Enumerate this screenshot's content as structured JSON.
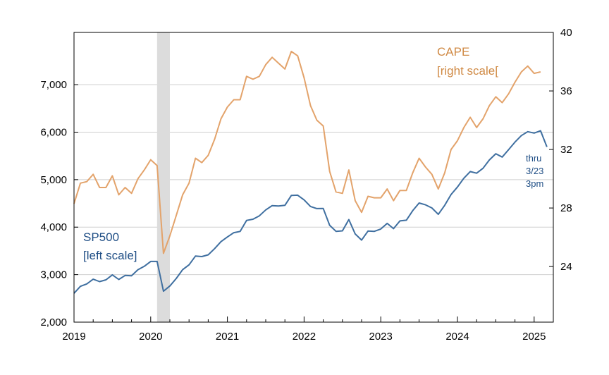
{
  "chart_data": {
    "type": "line",
    "x_start": "2019-01",
    "x_frequency": "monthly",
    "x_axis": {
      "ticks": [
        "2019",
        "2020",
        "2021",
        "2022",
        "2023",
        "2024",
        "2025"
      ],
      "range": [
        "2019-01",
        "2025-04"
      ]
    },
    "y_left": {
      "ticks": [
        "2,000",
        "3,000",
        "4,000",
        "5,000",
        "6,000",
        "7,000"
      ],
      "range": [
        2000,
        8100
      ]
    },
    "y_right": {
      "ticks": [
        "24",
        "28",
        "32",
        "36",
        "40"
      ],
      "range": [
        20.2,
        40
      ]
    },
    "grid": "horizontal, at left-axis ticks",
    "recession_shading": {
      "start": "2020-02",
      "end": "2020-04"
    },
    "series": [
      {
        "name": "SP500",
        "axis": "left",
        "color": "#3f6fa0",
        "values": [
          2607,
          2754,
          2804,
          2904,
          2854,
          2890,
          2996,
          2898,
          2982,
          2977,
          3104,
          3176,
          3278,
          3278,
          2652,
          2762,
          2920,
          3104,
          3207,
          3391,
          3380,
          3418,
          3548,
          3695,
          3793,
          3883,
          3910,
          4141,
          4167,
          4238,
          4363,
          4454,
          4446,
          4460,
          4667,
          4673,
          4573,
          4436,
          4391,
          4392,
          4040,
          3912,
          3922,
          4159,
          3856,
          3727,
          3917,
          3912,
          3960,
          4080,
          3968,
          4132,
          4146,
          4347,
          4509,
          4469,
          4405,
          4269,
          4460,
          4686,
          4845,
          5031,
          5170,
          5136,
          5240,
          5415,
          5546,
          5476,
          5630,
          5791,
          5929,
          6010,
          5980,
          6030,
          5690
        ]
      },
      {
        "name": "CAPE",
        "axis": "right",
        "color": "#e3a36b",
        "values": [
          28.3,
          29.7,
          29.8,
          30.3,
          29.4,
          29.4,
          30.2,
          28.9,
          29.4,
          29.0,
          30.0,
          30.6,
          31.3,
          30.9,
          24.9,
          26.1,
          27.5,
          28.9,
          29.7,
          31.4,
          31.1,
          31.6,
          32.7,
          34.1,
          34.9,
          35.4,
          35.4,
          37.0,
          36.8,
          37.0,
          37.8,
          38.3,
          37.9,
          37.5,
          38.7,
          38.4,
          36.9,
          35.0,
          34.0,
          33.6,
          30.5,
          29.1,
          29.0,
          30.6,
          28.5,
          27.7,
          28.8,
          28.7,
          28.7,
          29.3,
          28.5,
          29.2,
          29.2,
          30.4,
          31.4,
          30.8,
          30.3,
          29.3,
          30.4,
          32.0,
          32.6,
          33.5,
          34.2,
          33.5,
          34.1,
          35.0,
          35.6,
          35.2,
          35.8,
          36.6,
          37.3,
          37.7,
          37.2,
          37.3
        ]
      }
    ],
    "annotations": [
      {
        "series": "CAPE",
        "lines": [
          "CAPE",
          "[right scale["
        ]
      },
      {
        "series": "SP500",
        "lines": [
          "SP500",
          "[left scale]"
        ]
      },
      {
        "series": "SP500",
        "lines": [
          "thru",
          "3/23",
          "3pm"
        ]
      }
    ]
  }
}
